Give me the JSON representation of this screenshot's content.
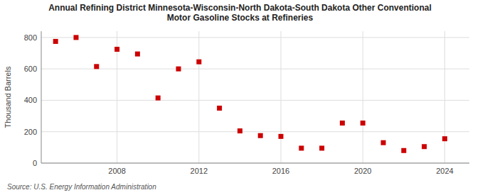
{
  "chart_data": {
    "type": "scatter",
    "title": "Annual Refining District Minnesota-Wisconsin-North Dakota-South Dakota Other Conventional\nMotor Gasoline Stocks at Refineries",
    "y_label": "Thousand Barrels",
    "source": "Source: U.S. Energy Information Administration",
    "x": [
      2005,
      2006,
      2007,
      2008,
      2009,
      2010,
      2011,
      2012,
      2013,
      2014,
      2015,
      2016,
      2017,
      2018,
      2019,
      2020,
      2021,
      2022,
      2023,
      2024
    ],
    "values": [
      775,
      800,
      615,
      725,
      695,
      415,
      600,
      645,
      350,
      205,
      175,
      170,
      95,
      95,
      255,
      255,
      130,
      80,
      105,
      155
    ],
    "color": "#cc0000",
    "marker": "square",
    "xlim": [
      2004.3,
      2025.2
    ],
    "xticks": [
      2008,
      2012,
      2016,
      2020,
      2024
    ],
    "ylim": [
      0,
      840
    ],
    "yticks": [
      0,
      200,
      400,
      600,
      800
    ],
    "grid": true
  }
}
